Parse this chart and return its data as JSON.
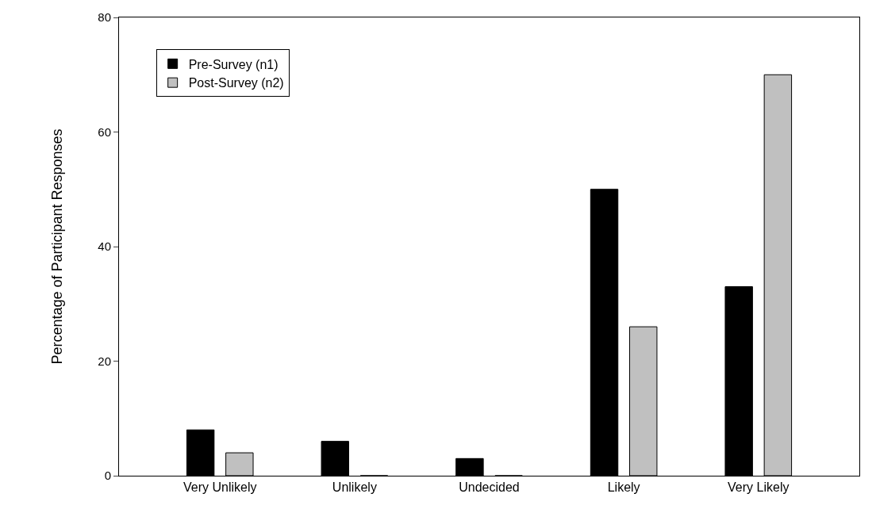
{
  "chart_data": {
    "type": "bar",
    "ylabel": "Percentage of Participant Responses",
    "categories": [
      "Very Unlikely",
      "Unlikely",
      "Undecided",
      "Likely",
      "Very Likely"
    ],
    "series": [
      {
        "name": "Pre-Survey (n1)",
        "color": "#000000",
        "values": [
          8,
          6,
          3,
          50,
          33
        ]
      },
      {
        "name": "Post-Survey (n2)",
        "color": "#c0c0c0",
        "values": [
          4,
          0,
          0,
          26,
          70
        ]
      }
    ],
    "ylim": [
      0,
      80
    ],
    "yticks": [
      0,
      20,
      40,
      60,
      80
    ],
    "grid": false,
    "legend": "top left"
  }
}
